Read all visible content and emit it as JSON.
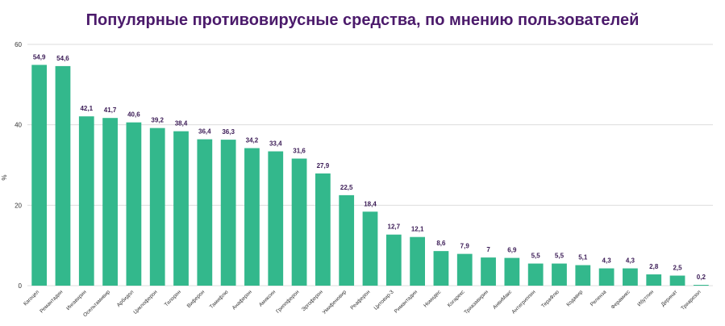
{
  "colors": {
    "bar": "#33b88c",
    "title": "#4b1a6b",
    "value_label": "#3a1a55",
    "grid": "#dddddd",
    "axis_text": "#333333"
  },
  "chart_data": {
    "type": "bar",
    "title": "Популярные противовирусные средства, по мнению пользователей",
    "ylabel": "%",
    "xlabel": "",
    "ylim": [
      0,
      60
    ],
    "yticks": [
      0,
      20,
      40,
      60
    ],
    "grid": true,
    "legend": "none",
    "categories": [
      "Кагоцел",
      "Ремантадин",
      "Ингавирин",
      "Осельтамивир",
      "Арбидол",
      "Циклоферон",
      "Тилорон",
      "Виферон",
      "Тамифлю",
      "Анаферон",
      "Амиксин",
      "Гриппферон",
      "Эргоферон",
      "Умифеновир",
      "Реаферон",
      "Цитовир-3",
      "Римантадин",
      "Номидес",
      "Когарекс",
      "Триазавирин",
      "АнвиМакс",
      "Антигриппин",
      "ТераФлю",
      "Кодавир",
      "Реленза",
      "Ферамикс",
      "Ибутлин",
      "Деринат",
      "Триарезол"
    ],
    "values": [
      54.9,
      54.6,
      42.1,
      41.7,
      40.6,
      39.2,
      38.4,
      36.4,
      36.3,
      34.2,
      33.4,
      31.6,
      27.9,
      22.5,
      18.4,
      12.7,
      12.1,
      8.6,
      7.9,
      7,
      6.9,
      5.5,
      5.5,
      5.1,
      4.3,
      4.3,
      2.8,
      2.5,
      0.2
    ],
    "value_labels": [
      "54,9",
      "54,6",
      "42,1",
      "41,7",
      "40,6",
      "39,2",
      "38,4",
      "36,4",
      "36,3",
      "34,2",
      "33,4",
      "31,6",
      "27,9",
      "22,5",
      "18,4",
      "12,7",
      "12,1",
      "8,6",
      "7,9",
      "7",
      "6,9",
      "5,5",
      "5,5",
      "5,1",
      "4,3",
      "4,3",
      "2,8",
      "2,5",
      "0,2"
    ]
  }
}
